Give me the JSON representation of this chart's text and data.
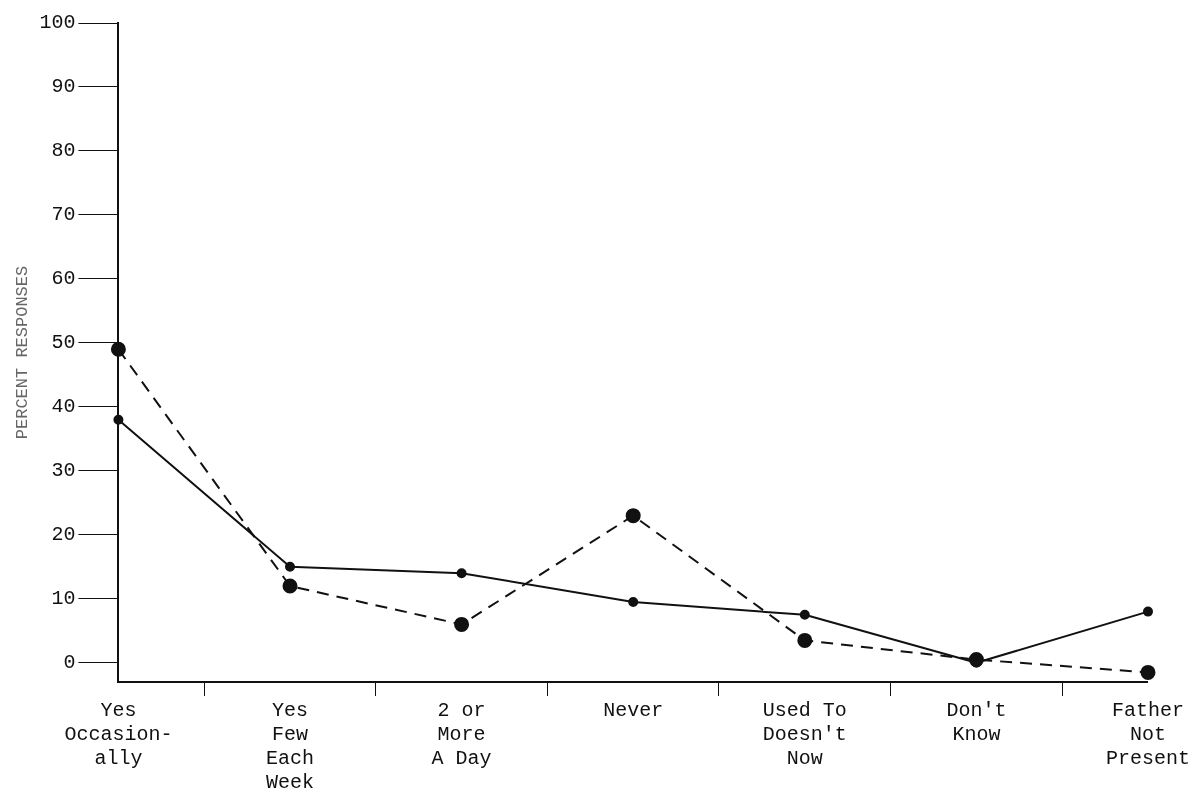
{
  "chart_data": {
    "type": "line",
    "ylabel": "PERCENT RESPONSES",
    "categories": [
      "Yes\nOccasion-\nally",
      "Yes\nFew\nEach\nWeek",
      "2 or\nMore\nA Day",
      "Never",
      "Used To\nDoesn't\nNow",
      "Don't\nKnow",
      "Father\nNot\nPresent"
    ],
    "series": [
      {
        "color": "#111111",
        "line_style": "solid",
        "values": [
          38,
          15,
          14,
          9.5,
          7.5,
          0,
          8
        ]
      },
      {
        "color": "#111111",
        "line_style": "dashed",
        "values": [
          49,
          12,
          6,
          23,
          3.5,
          0.5,
          -1.5
        ]
      }
    ],
    "ylim": [
      -3,
      100
    ],
    "yticks": [
      0,
      10,
      20,
      30,
      40,
      50,
      60,
      70,
      80,
      90,
      100
    ],
    "grid": false,
    "legend": false,
    "marker": "circle"
  }
}
